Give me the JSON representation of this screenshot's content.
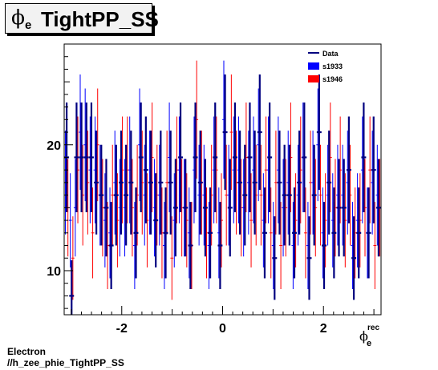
{
  "title": {
    "symbol": "ϕ",
    "subscript": "e",
    "text": "TightPP_SS"
  },
  "xaxis_title": {
    "symbol": "ϕ",
    "superscript": "rec",
    "subscript": "e"
  },
  "footer": {
    "line1": "Electron",
    "line2": "//h_zee_phie_TightPP_SS"
  },
  "legend": [
    {
      "label": "Data",
      "color": "#00007f",
      "style": "line"
    },
    {
      "label": "s1933",
      "color": "#0000ff",
      "style": "box"
    },
    {
      "label": "s1946",
      "color": "#ff0000",
      "style": "box"
    }
  ],
  "colors": {
    "data": "#00007f",
    "s1933": "#0000ff",
    "s1946": "#ff0000",
    "frame": "#000000"
  },
  "chart_data": {
    "type": "scatter",
    "xlim": [
      -3.1416,
      3.1416
    ],
    "ylim": [
      6.5,
      28
    ],
    "xticks": [
      -2,
      0,
      2
    ],
    "xtick_labels": [
      "-2",
      "0",
      "2"
    ],
    "yticks": [
      10,
      20
    ],
    "ytick_labels": [
      "10",
      "20"
    ],
    "legend_position": "top-right",
    "grid": false,
    "bins": 64,
    "series": [
      {
        "name": "Data",
        "errors": "sqrt",
        "values": [
          19,
          8,
          19,
          19,
          19,
          19,
          17,
          16,
          15,
          12,
          16,
          17,
          16,
          17,
          13,
          19,
          18,
          17,
          14,
          17,
          13,
          17,
          15,
          19,
          15,
          12,
          19,
          17,
          15,
          13,
          19,
          12,
          21,
          15,
          19,
          17,
          16,
          19,
          17,
          21,
          13,
          19,
          11,
          17,
          16,
          16,
          13,
          17,
          19,
          11,
          16,
          21,
          12,
          17,
          13,
          15,
          15,
          18,
          11,
          13,
          19,
          13,
          18,
          15
        ]
      },
      {
        "name": "s1933",
        "errors": "sqrt",
        "values": [
          17,
          14,
          15,
          21,
          20,
          18,
          18,
          16,
          14,
          13,
          17,
          15,
          15,
          18,
          12,
          20,
          16,
          17,
          15,
          16,
          12,
          19,
          14,
          18,
          15,
          13,
          18,
          16,
          16,
          12,
          18,
          13,
          22,
          16,
          18,
          18,
          15,
          17,
          18,
          20,
          14,
          18,
          12,
          18,
          15,
          17,
          12,
          16,
          19,
          12,
          17,
          20,
          13,
          16,
          14,
          16,
          16,
          17,
          12,
          14,
          18,
          13,
          17,
          16
        ]
      },
      {
        "name": "s1946",
        "errors": "sqrt",
        "values": [
          15,
          11,
          18,
          16,
          17,
          13,
          20,
          15,
          12,
          16,
          14,
          18,
          18,
          15,
          16,
          17,
          14,
          19,
          16,
          13,
          17,
          11,
          18,
          15,
          14,
          12,
          22,
          17,
          13,
          16,
          18,
          14,
          16,
          21,
          17,
          15,
          19,
          14,
          16,
          16,
          18,
          13,
          17,
          12,
          15,
          19,
          14,
          18,
          13,
          17,
          15,
          16,
          14,
          19,
          15,
          18,
          14,
          16,
          13,
          14,
          15,
          18,
          12,
          15
        ]
      }
    ]
  }
}
